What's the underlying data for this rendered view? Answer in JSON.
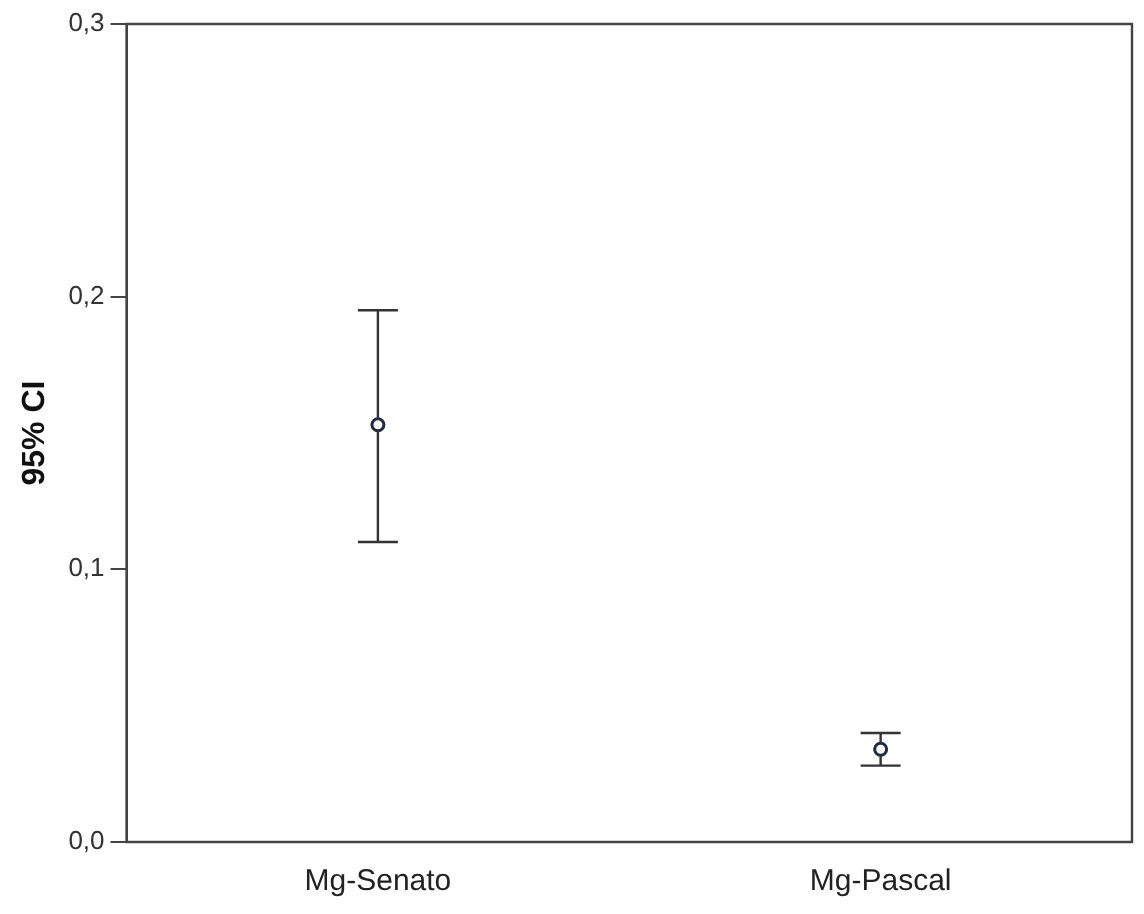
{
  "chart_data": {
    "type": "scatter",
    "ylabel": "95% CI",
    "categories": [
      "Mg-Senato",
      "Mg-Pascal"
    ],
    "series": [
      {
        "color": "#1f2a44",
        "values": [
          0.153,
          0.034
        ],
        "errors": [
          [
            0.11,
            0.195
          ],
          [
            0.028,
            0.04
          ]
        ]
      }
    ],
    "ylim": [
      0,
      0.3
    ],
    "yticks": [
      {
        "value": 0,
        "label": "0,0"
      },
      {
        "value": 0.1,
        "label": "0,1"
      },
      {
        "value": 0.2,
        "label": "0,2"
      },
      {
        "value": 0.3,
        "label": "0,3"
      }
    ],
    "marker": "circle",
    "grid": false,
    "legend": false
  }
}
